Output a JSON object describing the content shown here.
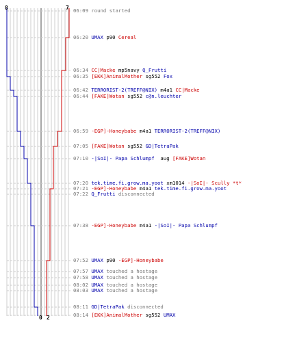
{
  "colors": {
    "blue": "#0000aa",
    "red": "#cc0000",
    "text": "#000000",
    "gray": "#777777",
    "grid_dark": "#888888",
    "grid_light": "#cccccc"
  },
  "scores": {
    "blue_start": "8",
    "red_start": "7",
    "blue_end": "0",
    "red_end": "2"
  },
  "events": [
    {
      "time": "06:09",
      "parts": [
        {
          "t": "round started",
          "c": "gray"
        }
      ]
    },
    {
      "time": "06:20",
      "parts": [
        {
          "t": "UMAX",
          "c": "blue"
        },
        {
          "t": " p90 ",
          "c": "text"
        },
        {
          "t": "Cereal",
          "c": "red"
        }
      ]
    },
    {
      "time": "06:34",
      "parts": [
        {
          "t": "CC|Macke",
          "c": "red"
        },
        {
          "t": " mp5navy ",
          "c": "text"
        },
        {
          "t": "Q_Frutti",
          "c": "blue"
        }
      ]
    },
    {
      "time": "06:35",
      "parts": [
        {
          "t": "[EKK]AnimalMother",
          "c": "red"
        },
        {
          "t": " sg552 ",
          "c": "text"
        },
        {
          "t": "Fox",
          "c": "blue"
        }
      ]
    },
    {
      "time": "06:42",
      "parts": [
        {
          "t": "TERRORIST-2(TREFF@NIX)",
          "c": "blue"
        },
        {
          "t": " m4a1 ",
          "c": "text"
        },
        {
          "t": "CC|Macke",
          "c": "red"
        }
      ]
    },
    {
      "time": "06:44",
      "parts": [
        {
          "t": "[FAKE]Wotan",
          "c": "red"
        },
        {
          "t": " sg552 ",
          "c": "text"
        },
        {
          "t": "c@n.leuchter",
          "c": "blue"
        }
      ]
    },
    {
      "time": "06:59",
      "parts": [
        {
          "t": "-EGP]-Honeybabe",
          "c": "red"
        },
        {
          "t": " m4a1 ",
          "c": "text"
        },
        {
          "t": "TERRORIST-2(TREFF@NIX)",
          "c": "blue"
        }
      ]
    },
    {
      "time": "07:05",
      "parts": [
        {
          "t": "[FAKE]Wotan",
          "c": "red"
        },
        {
          "t": " sg552 ",
          "c": "text"
        },
        {
          "t": "GD|TetraPak",
          "c": "blue"
        }
      ]
    },
    {
      "time": "07:10",
      "parts": [
        {
          "t": "-|SoI|- Papa Schlumpf",
          "c": "blue"
        },
        {
          "t": "  aug ",
          "c": "text"
        },
        {
          "t": "[FAKE]Wotan",
          "c": "red"
        }
      ]
    },
    {
      "time": "07:20",
      "parts": [
        {
          "t": "tek.time.fi.grow.ma.yoot",
          "c": "blue"
        },
        {
          "t": " xm1014 ",
          "c": "text"
        },
        {
          "t": "-|SoI|- Scully *t*",
          "c": "red"
        }
      ]
    },
    {
      "time": "07:21",
      "parts": [
        {
          "t": "-EGP]-Honeybabe",
          "c": "red"
        },
        {
          "t": " m4a1 ",
          "c": "text"
        },
        {
          "t": "tek.time.fi.grow.ma.yoot",
          "c": "blue"
        }
      ]
    },
    {
      "time": "07:22",
      "parts": [
        {
          "t": "Q_Frutti",
          "c": "blue"
        },
        {
          "t": " disconnected",
          "c": "gray"
        }
      ]
    },
    {
      "time": "07:38",
      "parts": [
        {
          "t": "-EGP]-Honeybabe",
          "c": "red"
        },
        {
          "t": " m4a1 ",
          "c": "text"
        },
        {
          "t": "-|SoI|- Papa Schlumpf",
          "c": "blue"
        }
      ]
    },
    {
      "time": "07:52",
      "parts": [
        {
          "t": "UMAX",
          "c": "blue"
        },
        {
          "t": " p90 ",
          "c": "text"
        },
        {
          "t": "-EGP]-Honeybabe",
          "c": "red"
        }
      ]
    },
    {
      "time": "07:57",
      "parts": [
        {
          "t": "UMAX",
          "c": "blue"
        },
        {
          "t": " touched a hostage",
          "c": "gray"
        }
      ]
    },
    {
      "time": "07:58",
      "parts": [
        {
          "t": "UMAX",
          "c": "blue"
        },
        {
          "t": " touched a hostage",
          "c": "gray"
        }
      ]
    },
    {
      "time": "08:02",
      "parts": [
        {
          "t": "UMAX",
          "c": "blue"
        },
        {
          "t": " touched a hostage",
          "c": "gray"
        }
      ]
    },
    {
      "time": "08:03",
      "parts": [
        {
          "t": "UMAX",
          "c": "blue"
        },
        {
          "t": " touched a hostage",
          "c": "gray"
        }
      ]
    },
    {
      "time": "08:11",
      "parts": [
        {
          "t": "GD|TetraPak",
          "c": "blue"
        },
        {
          "t": " disconnected",
          "c": "gray"
        }
      ]
    },
    {
      "time": "08:14",
      "parts": [
        {
          "t": "[EKK]AnimalMother",
          "c": "red"
        },
        {
          "t": " sg552 ",
          "c": "text"
        },
        {
          "t": "UMAX",
          "c": "blue"
        }
      ]
    }
  ]
}
